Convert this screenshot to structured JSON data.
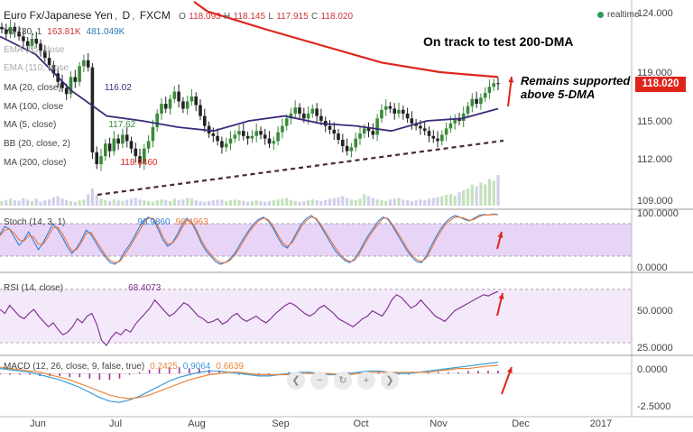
{
  "header": {
    "symbol": "Euro Fx/Japanese Yen",
    "interval": "D",
    "source": "FXCM",
    "ohlc": {
      "O": "118.093",
      "H": "118.145",
      "L": "117.915",
      "C": "118.020"
    }
  },
  "realtime_label": "realtime",
  "price_label": "118.020",
  "annotations": {
    "top": "On track to test 200-DMA",
    "side_line1": "Remains supported",
    "side_line2": "above 5-DMA"
  },
  "indicators": {
    "vol": {
      "label": "Vol (30, 1",
      "v1": "163.81K",
      "v2": "481.049K"
    },
    "ema55": {
      "label": "EMA (55, close"
    },
    "ema110": {
      "label": "EMA (110, close"
    },
    "ma20": {
      "label": "MA (20, close)",
      "value": "116.02"
    },
    "ma100": {
      "label": "MA (100, close"
    },
    "ma5": {
      "label": "MA (5, close)",
      "value": "117.62"
    },
    "bb": {
      "label": "BB (20, close, 2)"
    },
    "ma200": {
      "label": "MA (200, close)",
      "value": "118.6460"
    },
    "stoch": {
      "label": "Stoch (14, 3, 1)",
      "v1": "96.9860",
      "v2": "96.4963"
    },
    "rsi": {
      "label": "RSI (14, close)",
      "value": "68.4073"
    },
    "macd": {
      "label": "MACD (12, 26, close, 9, false, true)",
      "v1": "0.2425",
      "v2": "0.9064",
      "v3": "0.6639"
    }
  },
  "nav_icons": [
    "chevron-left-icon",
    "minus-icon",
    "reset-icon",
    "plus-icon",
    "chevron-right-icon"
  ],
  "colors": {
    "price_up": "#3a8a3a",
    "price_down": "#222222",
    "ma200": "#e0241c",
    "ma20": "#3b2a7a",
    "trendline": "#4a2a2a",
    "stoch_k": "#2f7ed8",
    "stoch_d": "#e8773a",
    "stoch_band": "#e8d4f6",
    "rsi_line": "#7a2a8a",
    "rsi_band": "#f4e8fb",
    "macd_line": "#3a9bd8",
    "macd_signal": "#e8873a",
    "macd_hist": "#a030a0",
    "arrow": "#e0241c"
  },
  "chart_data": [
    {
      "type": "candlestick",
      "title": "Euro Fx/Japanese Yen, D, FXCM",
      "x_tick_labels": [
        "Jun",
        "Jul",
        "Aug",
        "Sep",
        "Oct",
        "Nov",
        "Dec",
        "2017"
      ],
      "y_tick_labels": [
        "124.000",
        "119.000",
        "115.000",
        "112.000",
        "109.000"
      ],
      "ylim": [
        108.5,
        124.5
      ],
      "close": [
        122.6,
        122.2,
        122.8,
        122.4,
        122.0,
        121.6,
        121.2,
        121.8,
        121.4,
        120.8,
        120.2,
        119.6,
        118.9,
        118.2,
        117.7,
        117.2,
        118.6,
        118.2,
        119.5,
        120.0,
        119.4,
        112.5,
        111.6,
        112.2,
        113.2,
        112.6,
        113.6,
        113.2,
        113.9,
        113.4,
        112.8,
        112.2,
        111.7,
        112.8,
        113.4,
        114.5,
        115.6,
        116.4,
        116.0,
        116.8,
        117.4,
        116.6,
        116.0,
        116.6,
        117.0,
        116.3,
        115.4,
        114.6,
        114.0,
        113.8,
        113.4,
        112.9,
        113.2,
        113.6,
        113.9,
        114.2,
        113.8,
        113.6,
        113.8,
        114.2,
        113.9,
        113.6,
        113.2,
        113.4,
        114.1,
        114.6,
        115.2,
        115.6,
        116.1,
        115.6,
        115.2,
        115.6,
        116.0,
        115.4,
        115.0,
        114.6,
        114.3,
        114.0,
        113.5,
        113.0,
        112.6,
        112.9,
        113.6,
        114.0,
        114.4,
        114.2,
        113.9,
        115.2,
        115.9,
        116.2,
        116.0,
        115.6,
        115.9,
        115.6,
        115.2,
        114.8,
        114.6,
        114.4,
        114.2,
        113.8,
        113.6,
        113.4,
        113.9,
        114.4,
        114.8,
        115.2,
        115.0,
        115.6,
        116.2,
        116.8,
        116.4,
        116.9,
        117.3,
        117.8,
        118.1,
        118.02
      ],
      "series": [
        {
          "name": "MA (200, close)",
          "values": [
            124.1,
            122.6,
            121.2,
            119.8,
            119.0,
            118.6
          ]
        },
        {
          "name": "MA (20, close)",
          "values": [
            122.0,
            120.5,
            117.5,
            115.4,
            115.0,
            114.5,
            114.2,
            115.0,
            115.4,
            114.8,
            114.6,
            114.2,
            115.0,
            115.2,
            116.0
          ]
        }
      ],
      "volume": [
        12,
        15,
        18,
        14,
        13,
        20,
        16,
        12,
        18,
        10,
        14,
        16,
        22,
        25,
        18,
        15,
        12,
        10,
        14,
        16,
        30,
        45,
        28,
        18,
        14,
        12,
        16,
        14,
        12,
        15,
        18,
        20,
        16,
        14,
        12,
        10,
        14,
        16,
        15,
        12,
        18,
        14,
        16,
        20,
        18,
        14,
        12,
        10,
        12,
        14,
        15,
        16,
        12,
        14,
        16,
        14,
        12,
        10,
        12,
        14,
        12,
        10,
        12,
        14,
        16,
        18,
        20,
        14,
        12,
        10,
        12,
        14,
        16,
        14,
        12,
        15,
        18,
        20,
        22,
        25,
        20,
        16,
        14,
        18,
        30,
        25,
        20,
        16,
        14,
        12,
        16,
        18,
        20,
        16,
        14,
        12,
        14,
        16,
        14,
        18,
        20,
        22,
        25,
        28,
        30,
        26,
        35,
        40,
        45,
        55,
        50,
        60,
        55,
        70,
        65,
        80
      ]
    },
    {
      "type": "line",
      "title": "Stoch (14, 3, 1)",
      "y_tick_labels": [
        "100.0000",
        "0.0000"
      ],
      "ylim": [
        0,
        100
      ],
      "band": [
        20,
        80
      ],
      "series": [
        {
          "name": "%K",
          "values": [
            60,
            75,
            70,
            55,
            40,
            50,
            65,
            48,
            32,
            45,
            62,
            80,
            70,
            55,
            38,
            25,
            35,
            50,
            68,
            60,
            45,
            30,
            18,
            8,
            5,
            12,
            28,
            40,
            55,
            72,
            85,
            92,
            88,
            70,
            50,
            38,
            45,
            60,
            78,
            90,
            82,
            65,
            45,
            30,
            20,
            10,
            5,
            8,
            15,
            25,
            40,
            55,
            68,
            80,
            88,
            92,
            85,
            72,
            55,
            40,
            35,
            48,
            65,
            80,
            90,
            95,
            88,
            75,
            60,
            45,
            30,
            20,
            12,
            8,
            15,
            28,
            45,
            60,
            72,
            85,
            92,
            88,
            75,
            60,
            45,
            30,
            18,
            10,
            8,
            20,
            38,
            55,
            70,
            82,
            90,
            95,
            92,
            88,
            85,
            90,
            95,
            97,
            96,
            98,
            97
          ]
        },
        {
          "name": "%D",
          "values": [
            58,
            68,
            70,
            62,
            50,
            48,
            58,
            56,
            42,
            42,
            55,
            72,
            74,
            62,
            45,
            30,
            32,
            45,
            62,
            64,
            50,
            36,
            22,
            12,
            8,
            10,
            22,
            35,
            50,
            65,
            80,
            90,
            90,
            76,
            56,
            42,
            44,
            55,
            72,
            86,
            84,
            70,
            50,
            35,
            24,
            14,
            8,
            8,
            12,
            22,
            35,
            50,
            64,
            76,
            85,
            90,
            88,
            76,
            60,
            45,
            38,
            45,
            60,
            76,
            86,
            92,
            90,
            78,
            64,
            50,
            36,
            24,
            15,
            10,
            12,
            24,
            40,
            55,
            68,
            80,
            90,
            90,
            78,
            64,
            50,
            34,
            22,
            14,
            10,
            16,
            32,
            50,
            65,
            78,
            86,
            92,
            92,
            90,
            86,
            88,
            93,
            96,
            96,
            97,
            96.5
          ]
        }
      ]
    },
    {
      "type": "line",
      "title": "RSI (14, close)",
      "y_tick_labels": [
        "50.0000",
        "25.0000"
      ],
      "ylim": [
        22,
        80
      ],
      "band": [
        30,
        70
      ],
      "series": [
        {
          "name": "RSI",
          "values": [
            55,
            52,
            58,
            54,
            50,
            48,
            52,
            55,
            50,
            46,
            42,
            45,
            40,
            36,
            38,
            42,
            48,
            45,
            50,
            52,
            44,
            32,
            28,
            34,
            38,
            36,
            40,
            38,
            44,
            48,
            52,
            56,
            62,
            58,
            54,
            50,
            52,
            56,
            60,
            58,
            54,
            50,
            48,
            45,
            46,
            48,
            44,
            46,
            50,
            52,
            48,
            46,
            48,
            50,
            47,
            45,
            48,
            52,
            55,
            58,
            60,
            58,
            55,
            52,
            50,
            52,
            56,
            58,
            55,
            52,
            48,
            46,
            44,
            42,
            45,
            48,
            50,
            54,
            52,
            50,
            55,
            62,
            66,
            64,
            60,
            56,
            58,
            62,
            58,
            54,
            50,
            48,
            46,
            50,
            54,
            56,
            58,
            60,
            62,
            64,
            66,
            65,
            67,
            68.4
          ]
        }
      ]
    },
    {
      "type": "line",
      "title": "MACD (12, 26, close, 9, false, true)",
      "y_tick_labels": [
        "0.0000",
        "-2.5000"
      ],
      "ylim": [
        -3.0,
        1.3
      ],
      "series": [
        {
          "name": "MACD",
          "values": [
            0.4,
            0.3,
            0.2,
            0.1,
            -0.1,
            -0.3,
            -0.5,
            -0.8,
            -1.1,
            -1.5,
            -1.9,
            -2.2,
            -2.3,
            -2.1,
            -1.8,
            -1.4,
            -1.0,
            -0.6,
            -0.3,
            -0.1,
            0.1,
            0.2,
            0.2,
            0.1,
            0.0,
            -0.1,
            -0.2,
            -0.2,
            -0.1,
            0.0,
            0.1,
            0.1,
            0.0,
            -0.1,
            -0.1,
            0.0,
            0.1,
            0.2,
            0.2,
            0.1,
            0.0,
            0.0,
            0.1,
            0.2,
            0.3,
            0.4,
            0.5,
            0.6,
            0.7,
            0.8,
            0.9
          ]
        },
        {
          "name": "Signal",
          "values": [
            0.5,
            0.4,
            0.3,
            0.2,
            0.1,
            -0.1,
            -0.3,
            -0.5,
            -0.8,
            -1.1,
            -1.4,
            -1.7,
            -1.9,
            -2.0,
            -1.9,
            -1.7,
            -1.4,
            -1.1,
            -0.8,
            -0.5,
            -0.3,
            -0.1,
            0.0,
            0.1,
            0.1,
            0.0,
            -0.1,
            -0.1,
            -0.1,
            -0.1,
            0.0,
            0.0,
            0.0,
            0.0,
            -0.1,
            -0.1,
            0.0,
            0.1,
            0.1,
            0.1,
            0.1,
            0.1,
            0.1,
            0.1,
            0.2,
            0.3,
            0.4,
            0.4,
            0.5,
            0.6,
            0.66
          ]
        }
      ]
    }
  ]
}
